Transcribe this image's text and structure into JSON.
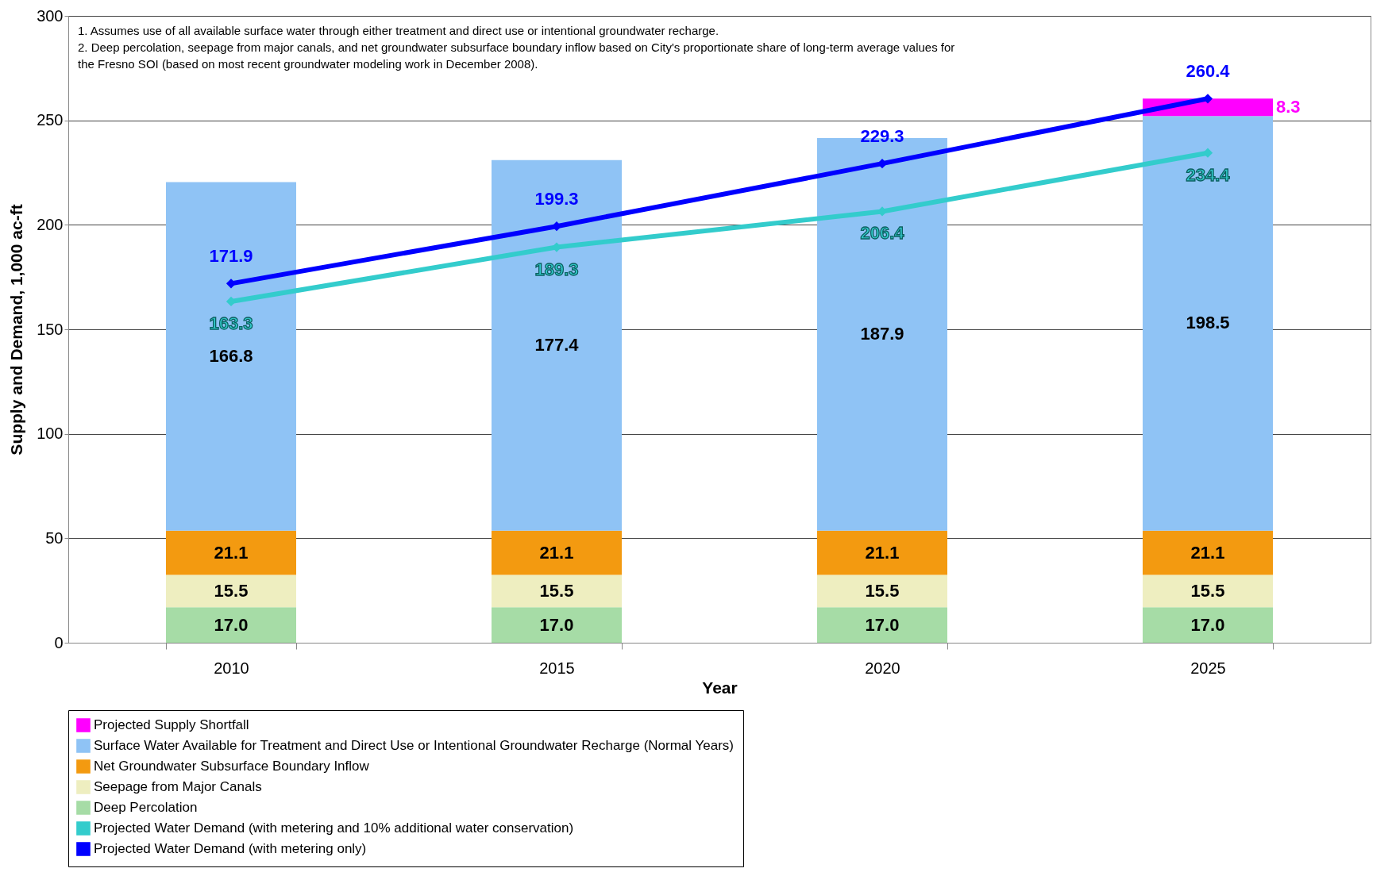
{
  "chart_data": {
    "type": "bar",
    "stacked": true,
    "categories": [
      "2010",
      "2015",
      "2020",
      "2025"
    ],
    "xlabel": "Year",
    "ylabel": "Supply and Demand, 1,000 ac-ft",
    "ylim": [
      0,
      300
    ],
    "yticks": [
      0,
      50,
      100,
      150,
      200,
      250,
      300
    ],
    "grid": "y",
    "legend": "bottom",
    "marker": "diamond",
    "annotations": [
      "1.  Assumes use of all available surface water through either treatment and direct use or intentional groundwater recharge.",
      "2.  Deep percolation, seepage from major canals, and net groundwater subsurface boundary inflow based on City's proportionate share of long-term average values for the Fresno SOI (based on most recent groundwater modeling work in December 2008)."
    ],
    "series": [
      {
        "name": "Deep Percolation",
        "color": "#a6dca6",
        "values": [
          17.0,
          17.0,
          17.0,
          17.0
        ],
        "value_labels": [
          "17.0",
          "17.0",
          "17.0",
          "17.0"
        ]
      },
      {
        "name": "Seepage from Major Canals",
        "color": "#eeeec0",
        "values": [
          15.5,
          15.5,
          15.5,
          15.5
        ],
        "value_labels": [
          "15.5",
          "15.5",
          "15.5",
          "15.5"
        ]
      },
      {
        "name": "Net Groundwater Subsurface Boundary Inflow",
        "color": "#f39a10",
        "values": [
          21.1,
          21.1,
          21.1,
          21.1
        ],
        "value_labels": [
          "21.1",
          "21.1",
          "21.1",
          "21.1"
        ]
      },
      {
        "name": "Surface Water Available for Treatment and Direct Use or Intentional Groundwater Recharge (Normal Years)",
        "color": "#8fc3f5",
        "values": [
          166.8,
          177.4,
          187.9,
          198.5
        ],
        "value_labels": [
          "166.8",
          "177.4",
          "187.9",
          "198.5"
        ]
      },
      {
        "name": "Projected Supply Shortfall",
        "color": "#ff00ff",
        "values": [
          null,
          null,
          null,
          8.3
        ],
        "value_labels": [
          null,
          null,
          null,
          "8.3"
        ]
      },
      {
        "name": "Projected Water Demand (with metering and 10% additional water conservation)",
        "type": "line",
        "color": "#33cccc",
        "values": [
          163.3,
          189.3,
          206.4,
          234.4
        ],
        "value_labels": [
          "163.3",
          "189.3",
          "206.4",
          "234.4"
        ]
      },
      {
        "name": "Projected Water Demand (with metering only)",
        "type": "line",
        "color": "#0000ff",
        "values": [
          171.9,
          199.3,
          229.3,
          260.4
        ],
        "value_labels": [
          "171.9",
          "199.3",
          "229.3",
          "260.4"
        ]
      }
    ]
  }
}
